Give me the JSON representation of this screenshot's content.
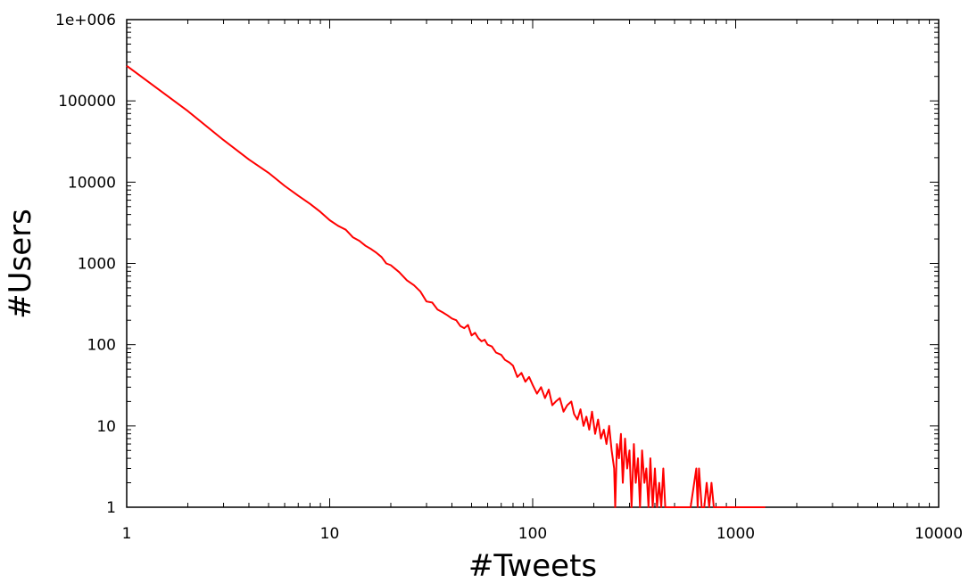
{
  "chart_data": {
    "type": "line",
    "title": "",
    "xlabel": "#Tweets",
    "ylabel": "#Users",
    "xscale": "log",
    "yscale": "log",
    "xlim": [
      1,
      10000
    ],
    "ylim": [
      1,
      1000000
    ],
    "grid": false,
    "x_tick_labels": [
      "1",
      "10",
      "100",
      "1000",
      "10000"
    ],
    "y_tick_labels": [
      "1",
      "10",
      "100",
      "1000",
      "10000",
      "100000",
      "1e+006"
    ],
    "series_color": "#ff0000",
    "series": [
      {
        "x": [
          1,
          2,
          3,
          4,
          5,
          6,
          7,
          8,
          9,
          10,
          11,
          12,
          13,
          14,
          15,
          16,
          17,
          18,
          19,
          20,
          22,
          24,
          26,
          28,
          30,
          32,
          34,
          36,
          38,
          40,
          42,
          44,
          46,
          48,
          50,
          52,
          54,
          56,
          58,
          60,
          63,
          66,
          70,
          73,
          77,
          80,
          84,
          88,
          92,
          96,
          100,
          105,
          110,
          115,
          120,
          125,
          130,
          136,
          142,
          148,
          155,
          160,
          166,
          172,
          178,
          184,
          190,
          196,
          203,
          210,
          217,
          224,
          231,
          238,
          245,
          252,
          255,
          260,
          266,
          272,
          278,
          285,
          292,
          300,
          307,
          315,
          322,
          330,
          338,
          346,
          355,
          363,
          372,
          380,
          390,
          400,
          410,
          420,
          430,
          440,
          450,
          470,
          500,
          550,
          600,
          640,
          650,
          660,
          680,
          700,
          720,
          740,
          760,
          780,
          800,
          900,
          1000,
          1200,
          1400
        ],
        "y": [
          270000,
          75000,
          33000,
          19000,
          13000,
          9000,
          6800,
          5400,
          4300,
          3400,
          2900,
          2600,
          2100,
          1900,
          1650,
          1500,
          1350,
          1200,
          1000,
          950,
          780,
          620,
          540,
          450,
          340,
          330,
          270,
          250,
          230,
          210,
          200,
          170,
          160,
          175,
          130,
          140,
          120,
          110,
          115,
          100,
          95,
          80,
          75,
          65,
          60,
          55,
          40,
          45,
          35,
          40,
          32,
          25,
          30,
          22,
          28,
          18,
          20,
          22,
          15,
          18,
          20,
          14,
          12,
          16,
          10,
          13,
          9,
          15,
          8,
          12,
          7,
          9,
          6,
          10,
          5,
          3,
          1,
          6,
          4,
          8,
          2,
          7,
          3,
          5,
          1,
          6,
          2,
          4,
          1,
          5,
          2,
          3,
          1,
          4,
          1,
          3,
          1,
          2,
          1,
          3,
          1,
          1,
          1,
          1,
          1,
          3,
          1,
          3,
          1,
          1,
          2,
          1,
          2,
          1,
          1,
          1,
          1,
          1,
          1
        ]
      }
    ]
  }
}
